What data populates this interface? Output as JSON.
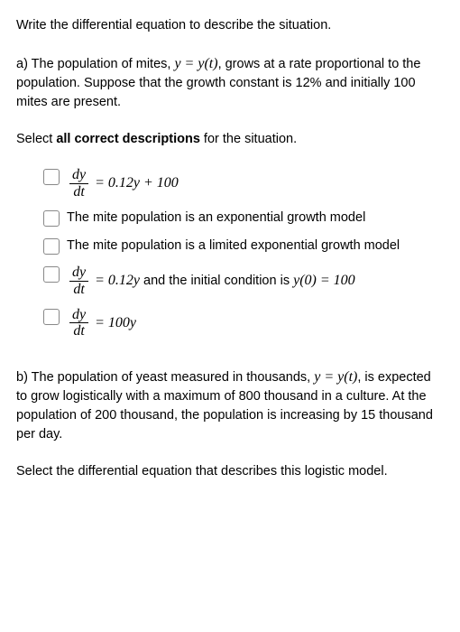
{
  "prompt": "Write the differential equation to describe the situation.",
  "partA": {
    "lead_a": "a) The population of mites, ",
    "lead_math": "y = y(t)",
    "lead_b": ", grows at a rate proportional to the population. Suppose that the growth constant is 12% and initially 100 mites are present."
  },
  "instrA_prefix": "Select ",
  "instrA_bold": "all correct descriptions",
  "instrA_suffix": " for the situation.",
  "opts": {
    "o1_rhs": " = 0.12y + 100",
    "o2": "The mite population is an exponential growth model",
    "o3": "The mite population is a limited exponential growth model",
    "o4_rhs_a": " = 0.12y",
    "o4_txt": " and the initial condition is ",
    "o4_rhs_b": "y(0) = 100",
    "o5_rhs": " = 100y"
  },
  "frac": {
    "num": "dy",
    "den": "dt"
  },
  "partB": {
    "lead_a": "b) The population of yeast measured in thousands, ",
    "lead_math": "y = y(t)",
    "lead_b": ", is expected to grow logistically with a maximum of 800 thousand in a culture. At the population of 200 thousand, the population is increasing by 15 thousand per day."
  },
  "instrB": "Select the differential equation that describes this logistic model."
}
